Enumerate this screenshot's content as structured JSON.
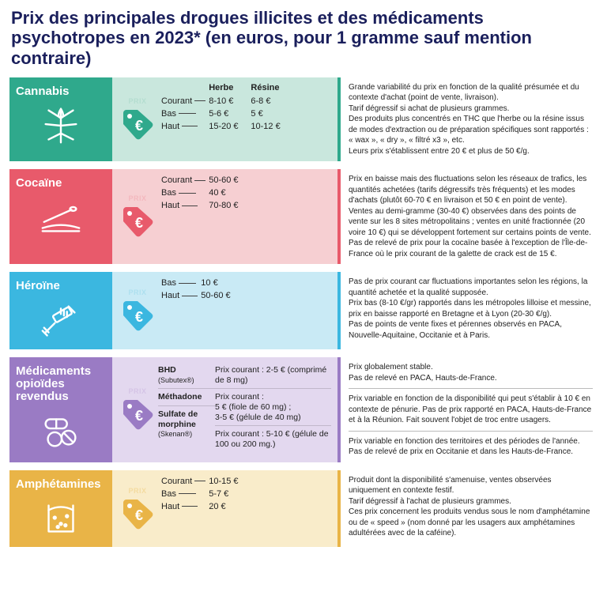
{
  "title": "Prix des principales drogues illicites et des médicaments psychotropes en 2023* (en euros, pour 1 gramme sauf mention contraire)",
  "prixLabel": "PRIX",
  "drugs": [
    {
      "name": "Cannabis",
      "colors": {
        "left": "#2fa98c",
        "mid": "#c9e7dd",
        "accent": "#2fa98c",
        "tag": "#2fa98c",
        "tagText": "#b4ddd0"
      },
      "headers": [
        "Herbe",
        "Résine"
      ],
      "rows": [
        {
          "label": "Courant",
          "v1": "8-10 €",
          "v2": "6-8 €"
        },
        {
          "label": "Bas",
          "v1": "5-6 €",
          "v2": "5 €"
        },
        {
          "label": "Haut",
          "v1": "15-20 €",
          "v2": "10-12 €"
        }
      ],
      "desc": "Grande variabilité du prix en fonction de la qualité présumée et du contexte d'achat (point de vente, livraison).\nTarif dégressif si achat de plusieurs grammes.\nDes produits plus concentrés en THC que l'herbe ou la résine issus de modes d'extraction ou de préparation spécifiques sont rapportés : « wax », « dry », « filtré x3 », etc.\nLeurs prix s'établissent entre 20 € et plus de 50 €/g."
    },
    {
      "name": "Cocaïne",
      "colors": {
        "left": "#e85a6b",
        "mid": "#f6cfd2",
        "accent": "#e85a6b",
        "tag": "#e85a6b",
        "tagText": "#f3b8be"
      },
      "rows": [
        {
          "label": "Courant",
          "v1": "50-60 €"
        },
        {
          "label": "Bas",
          "v1": "40 €"
        },
        {
          "label": "Haut",
          "v1": "70-80 €"
        }
      ],
      "desc": "Prix en baisse mais des fluctuations selon les réseaux de trafics, les quantités achetées (tarifs dégressifs très fréquents) et les modes d'achats (plutôt 60-70 € en livraison et 50 € en point de vente).\nVentes au demi-gramme (30-40 €) observées dans des points de vente sur les 8 sites métropolitains ; ventes en unité fractionnée (20 voire 10 €) qui se développent fortement sur certains points de vente.\nPas de relevé de prix pour la cocaïne basée à l'exception de l'Île-de-France où le prix courant de la galette de crack est de 15 €."
    },
    {
      "name": "Héroïne",
      "colors": {
        "left": "#3bb7e0",
        "mid": "#c9eaf5",
        "accent": "#3bb7e0",
        "tag": "#3bb7e0",
        "tagText": "#aee0ef"
      },
      "rows": [
        {
          "label": "Bas",
          "v1": "10 €"
        },
        {
          "label": "Haut",
          "v1": "50-60 €"
        }
      ],
      "desc": "Pas de prix courant car fluctuations importantes selon les régions, la quantité achetée et la qualité supposée.\nPrix bas (8-10 €/gr) rapportés dans les métropoles lilloise et messine, prix en baisse rapporté en Bretagne et à Lyon (20-30 €/g).\nPas de points de vente fixes et pérennes observés en PACA, Nouvelle-Aquitaine, Occitanie et à Paris."
    },
    {
      "name": "Médicaments opioïdes revendus",
      "colors": {
        "left": "#9a7bc4",
        "mid": "#e3d8ef",
        "accent": "#9a7bc4",
        "tag": "#9a7bc4",
        "tagText": "#d5c4e6"
      },
      "med": [
        {
          "n": "BHD",
          "s": "(Subutex®)",
          "p": "Prix courant : 2-5 € (comprimé de 8 mg)",
          "d": "Prix globalement stable.\nPas de relevé en PACA, Hauts-de-France."
        },
        {
          "n": "Méthadone",
          "s": "",
          "p": "Prix courant :\n5 € (fiole de 60 mg) ;\n3-5 € (gélule de 40 mg)",
          "d": "Prix variable en fonction de la disponibilité qui peut s'établir à 10 € en contexte de pénurie. Pas de prix rapporté en PACA, Hauts-de-France et à la Réunion. Fait souvent l'objet de troc entre usagers."
        },
        {
          "n": "Sulfate de morphine",
          "s": "(Skenan®)",
          "p": "Prix courant : 5-10 € (gélule de 100 ou 200 mg.)",
          "d": "Prix variable en fonction des territoires et des périodes de l'année.\nPas de relevé de prix en Occitanie et dans les Hauts-de-France."
        }
      ]
    },
    {
      "name": "Amphétamines",
      "colors": {
        "left": "#e9b447",
        "mid": "#f9ecca",
        "accent": "#e9b447",
        "tag": "#e9b447",
        "tagText": "#f4dba0"
      },
      "rows": [
        {
          "label": "Courant",
          "v1": "10-15 €"
        },
        {
          "label": "Bas",
          "v1": "5-7 €"
        },
        {
          "label": "Haut",
          "v1": "20 €"
        }
      ],
      "desc": "Produit dont la disponibilité s'amenuise, ventes observées uniquement en contexte festif.\nTarif dégressif à l'achat de plusieurs grammes.\nCes prix concernent les produits vendus sous le nom d'amphétamine ou de « speed » (nom donné par les usagers aux amphétamines adultérées avec de la caféine)."
    }
  ]
}
